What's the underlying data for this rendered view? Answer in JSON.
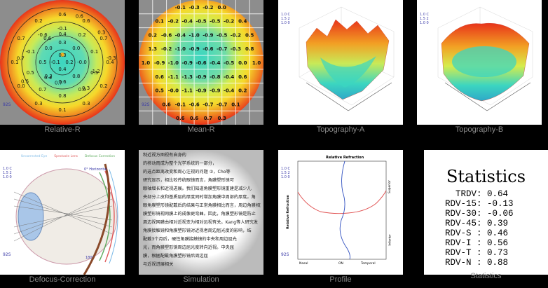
{
  "panels": {
    "relative_r": {
      "label": "Relative-R",
      "ring_values": [
        "0.6",
        "0.6",
        "0.7",
        "0.4",
        "0.2",
        "0.3",
        "0.1",
        "0.3",
        "0.0",
        "0.1",
        "0.7",
        "0.2",
        "-0.1",
        "0.2",
        "0.1",
        "0.5",
        "0.0",
        "0.8",
        "0.7",
        "0.5",
        "-0.1",
        "-0.6",
        "0.3",
        "0.0",
        "-0.0",
        "0.8",
        "0.6",
        "0.3",
        "0.5",
        "0.0",
        "0.3",
        "0.2",
        "0.4",
        "-0.1",
        "-0.3",
        "0.4",
        "0.4",
        "0.3",
        "0.7",
        "0.3",
        "0.7",
        "0.6",
        "1.2",
        "0.5",
        "0.6"
      ],
      "tag": "92S"
    },
    "mean_r": {
      "label": "Mean-R",
      "grid": [
        [
          "-0.1",
          "-0.3",
          "-0.2",
          "0.0"
        ],
        [
          "0.1",
          "-0.2",
          "-0.4",
          "-0.5",
          "-0.5",
          "-0.2",
          "0.4"
        ],
        [
          "0.2",
          "-0.6",
          "-0.4",
          "-1.0",
          "-0.9",
          "-0.5",
          "-0.2",
          "0.5"
        ],
        [
          "1.3",
          "-0.2",
          "-1.0",
          "-0.9",
          "-0.6",
          "-0.7",
          "-0.3",
          "0.8"
        ],
        [
          "1.0",
          "-0.9",
          "-1.0",
          "-0.9",
          "-0.6",
          "-0.4",
          "-0.5",
          "0.0",
          "1.0"
        ],
        [
          "0.6",
          "-1.1",
          "-1.3",
          "-0.9",
          "-0.8",
          "-0.4",
          "0.6"
        ],
        [
          "0.5",
          "-0.0",
          "-1.1",
          "-0.9",
          "-0.9",
          "-0.4",
          "0.2"
        ],
        [
          "0.6",
          "-0.1",
          "-0.6",
          "-0.7",
          "-0.7",
          "0.1"
        ],
        [
          "0.6",
          "0.6",
          "0.7",
          "0.3"
        ]
      ],
      "tag": "92S"
    },
    "topo_a": {
      "label": "Topography-A",
      "legend": [
        "1.0 C",
        "1.5 2",
        "1.0 0"
      ]
    },
    "topo_b": {
      "label": "Topography-B",
      "legend": [
        "1.0 C",
        "1.5 2",
        "1.0 0"
      ]
    },
    "defocus": {
      "label": "Defocus-Correction",
      "legend": [
        "Uncorrected Eye",
        "Spectacle Lens",
        "Defocus Correction"
      ],
      "legend_colors": [
        "#7ab8e6",
        "#e05b5b",
        "#5caa5c"
      ],
      "marks": [
        "0° Horizontal",
        "180°"
      ],
      "tag": "92S",
      "corner": [
        "1.0 C",
        "1.5 2",
        "1.0 0"
      ]
    },
    "simulation": {
      "label": "Simulation",
      "lines": [
        "制近视方图视有自身的",
        "的移动而成为整个光学系统的一部分，",
        "的选点距离改变和周心注视的问题 ②，Cho等",
        "研究显示，相比较传统眼镜而言，角膜塑形镜可",
        "眼轴增长和近视进展。我们知道角膜塑形镜重建是减少儿",
        "央部分上皮和基质层的厚度同时增加角膜中周部的厚度。角",
        "眼角膜塑形镜配戴后的结果与正常角膜相比而言，周边角膜相对",
        "膜塑形镜视网膜上的成像更弯曲。因此，角膜塑形镜是防止",
        "周边视网膜由相对近视变为相对远视有关。Kang等人研究发",
        "角膜接触镜和角膜塑形镜对近视者周边屈光度的影响，结",
        "配戴3个月后，硬性角膜接触镜的中央和周边屈光",
        "光，而角膜塑形镜周边屈光度转向近视。中央屈",
        "膜，根据配戴角膜塑形镜后周边屈",
        "与近视进展相关"
      ]
    },
    "profile": {
      "label": "Profile",
      "title": "Relative Refraction",
      "ylabel": "Relative Refraction",
      "xlabels": [
        "Nasal",
        "ON",
        "Temporal"
      ],
      "right_labels": [
        "Superior",
        "Inferior"
      ],
      "corner": [
        "1.0 C",
        "1.5 2",
        "1.0 0"
      ],
      "tag": "92S"
    },
    "statistics": {
      "label": "Statistics",
      "title": "Statistics",
      "rows": [
        {
          "name": "TRDV:",
          "value": "0.64"
        },
        {
          "name": "RDV-15:",
          "value": "-0.13"
        },
        {
          "name": "RDV-30:",
          "value": "-0.06"
        },
        {
          "name": "RDV-45:",
          "value": "0.39"
        },
        {
          "name": "RDV-S :",
          "value": "0.46"
        },
        {
          "name": "RDV-I :",
          "value": "0.56"
        },
        {
          "name": "RDV-T :",
          "value": "0.73"
        },
        {
          "name": "RDV-N :",
          "value": "0.88"
        }
      ]
    }
  },
  "colors": {
    "warm": "#e8331a",
    "mid": "#f5e51f",
    "cool": "#3cd6c0",
    "dark": "#000000",
    "caption": "#8c8c8c"
  }
}
